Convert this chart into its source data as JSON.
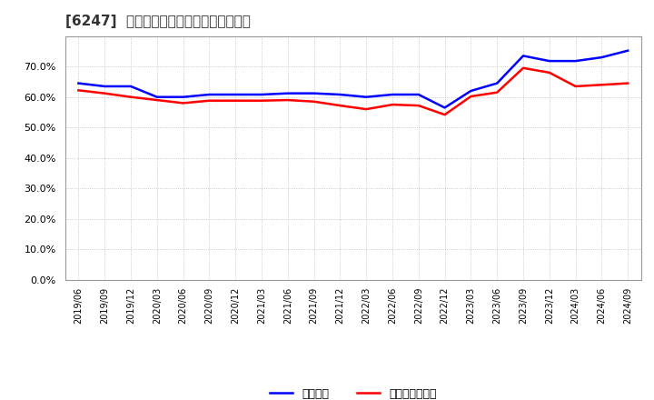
{
  "title": "[6247]  固定比率、固定長期適合率の推移",
  "blue_label": "固定比率",
  "red_label": "固定長期適合率",
  "blue_color": "#0000ff",
  "red_color": "#ff0000",
  "background_color": "#ffffff",
  "plot_bg_color": "#ffffff",
  "grid_color": "#bbbbbb",
  "ylim": [
    0.0,
    0.8
  ],
  "yticks": [
    0.0,
    0.1,
    0.2,
    0.3,
    0.4,
    0.5,
    0.6,
    0.7
  ],
  "x_labels": [
    "2019/06",
    "2019/09",
    "2019/12",
    "2020/03",
    "2020/06",
    "2020/09",
    "2020/12",
    "2021/03",
    "2021/06",
    "2021/09",
    "2021/12",
    "2022/03",
    "2022/06",
    "2022/09",
    "2022/12",
    "2023/03",
    "2023/06",
    "2023/09",
    "2023/12",
    "2024/03",
    "2024/06",
    "2024/09"
  ],
  "blue_values": [
    0.645,
    0.635,
    0.635,
    0.6,
    0.6,
    0.608,
    0.608,
    0.608,
    0.612,
    0.612,
    0.608,
    0.6,
    0.608,
    0.608,
    0.565,
    0.62,
    0.645,
    0.735,
    0.718,
    0.718,
    0.73,
    0.752
  ],
  "red_values": [
    0.622,
    0.612,
    0.6,
    0.59,
    0.58,
    0.588,
    0.588,
    0.588,
    0.59,
    0.585,
    0.572,
    0.56,
    0.575,
    0.572,
    0.542,
    0.602,
    0.615,
    0.695,
    0.68,
    0.635,
    0.64,
    0.645
  ]
}
